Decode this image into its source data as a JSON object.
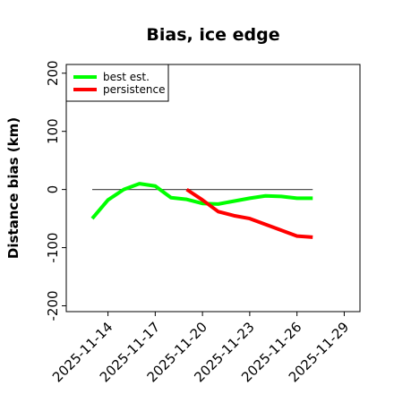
{
  "chart_data": {
    "type": "line",
    "title": "Bias, ice edge",
    "xlabel": "",
    "ylabel": "Distance bias (km)",
    "x_type": "date",
    "xlim": [
      "2025-11-13",
      "2025-11-30"
    ],
    "ylim": [
      -210,
      215
    ],
    "x_ticks": [
      "2025-11-14",
      "2025-11-17",
      "2025-11-20",
      "2025-11-23",
      "2025-11-26",
      "2025-11-29"
    ],
    "y_ticks": [
      -200,
      -100,
      0,
      100,
      200
    ],
    "y_tick_labels": [
      "-200",
      "-100",
      "0",
      "100",
      "200"
    ],
    "reference_line": {
      "y": 0,
      "x_start": "2025-11-13",
      "x_end": "2025-11-27",
      "color": "#555555"
    },
    "legend": {
      "position": "top-left"
    },
    "series": [
      {
        "name": "best est.",
        "color": "#00ff00",
        "points": [
          {
            "x": "2025-11-13",
            "y": -50
          },
          {
            "x": "2025-11-14",
            "y": -18
          },
          {
            "x": "2025-11-15",
            "y": 0
          },
          {
            "x": "2025-11-16",
            "y": 10
          },
          {
            "x": "2025-11-17",
            "y": 6
          },
          {
            "x": "2025-11-18",
            "y": -14
          },
          {
            "x": "2025-11-19",
            "y": -17
          },
          {
            "x": "2025-11-20",
            "y": -24
          },
          {
            "x": "2025-11-21",
            "y": -25
          },
          {
            "x": "2025-11-22",
            "y": -20
          },
          {
            "x": "2025-11-23",
            "y": -15
          },
          {
            "x": "2025-11-24",
            "y": -11
          },
          {
            "x": "2025-11-25",
            "y": -12
          },
          {
            "x": "2025-11-26",
            "y": -15
          },
          {
            "x": "2025-11-27",
            "y": -15
          }
        ]
      },
      {
        "name": "persistence",
        "color": "#ff0000",
        "points": [
          {
            "x": "2025-11-19",
            "y": 0
          },
          {
            "x": "2025-11-20",
            "y": -18
          },
          {
            "x": "2025-11-21",
            "y": -38
          },
          {
            "x": "2025-11-22",
            "y": -45
          },
          {
            "x": "2025-11-23",
            "y": -50
          },
          {
            "x": "2025-11-24",
            "y": -60
          },
          {
            "x": "2025-11-25",
            "y": -70
          },
          {
            "x": "2025-11-26",
            "y": -80
          },
          {
            "x": "2025-11-27",
            "y": -82
          }
        ]
      }
    ]
  }
}
